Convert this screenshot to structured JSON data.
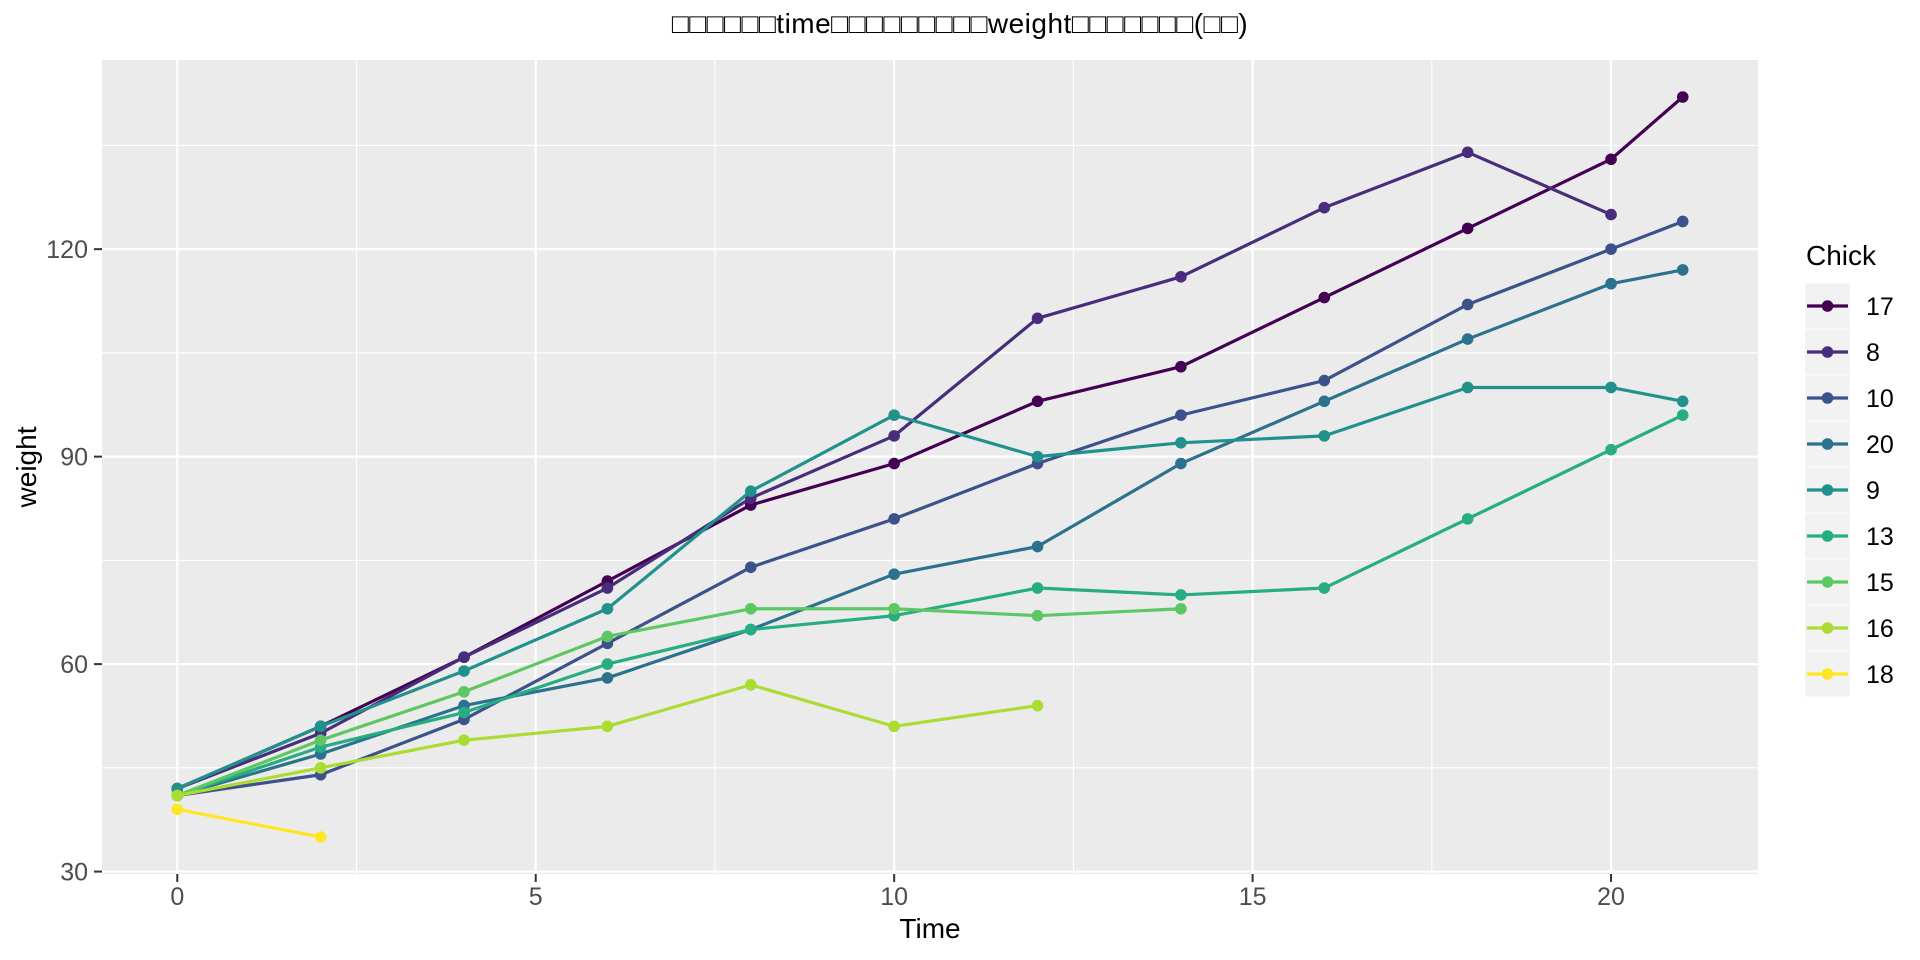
{
  "figure": {
    "background": "#FFFFFF"
  },
  "chart_data": {
    "type": "line",
    "title": "□□□□□□time□□□□□□□□□weight□□□□□□□(□□)",
    "xlabel": "Time",
    "ylabel": "weight",
    "legend_title": "Chick",
    "legend_position": "right",
    "x_ticks": [
      0,
      5,
      10,
      15,
      20
    ],
    "y_ticks": [
      30,
      60,
      90,
      120
    ],
    "x_minor_gridlines": [
      2.5,
      7.5,
      12.5,
      17.5
    ],
    "y_minor_gridlines": [
      45,
      75,
      105,
      135
    ],
    "xlim": [
      -1.05,
      22.05
    ],
    "ylim": [
      29.65,
      147.35
    ],
    "grid": true,
    "panel_background": "#EBEBEB",
    "gridline_color": "#FFFFFF",
    "axis_text_color": "#4D4D4D",
    "axis_title_color": "#000000",
    "tick_color": "#333333",
    "legend_key_background": "#F2F2F2",
    "series": [
      {
        "name": "17",
        "color": "#440154",
        "x": [
          0,
          2,
          4,
          6,
          8,
          10,
          12,
          14,
          16,
          18,
          20,
          21
        ],
        "y": [
          42,
          51,
          61,
          72,
          83,
          89,
          98,
          103,
          113,
          123,
          133,
          142
        ]
      },
      {
        "name": "8",
        "color": "#472D7B",
        "x": [
          0,
          2,
          4,
          6,
          8,
          10,
          12,
          14,
          16,
          18,
          20
        ],
        "y": [
          42,
          50,
          61,
          71,
          84,
          93,
          110,
          116,
          126,
          134,
          125
        ]
      },
      {
        "name": "10",
        "color": "#3B528B",
        "x": [
          0,
          2,
          4,
          6,
          8,
          10,
          12,
          14,
          16,
          18,
          20,
          21
        ],
        "y": [
          41,
          44,
          52,
          63,
          74,
          81,
          89,
          96,
          101,
          112,
          120,
          124
        ]
      },
      {
        "name": "20",
        "color": "#2C728E",
        "x": [
          0,
          2,
          4,
          6,
          8,
          10,
          12,
          14,
          16,
          18,
          20,
          21
        ],
        "y": [
          41,
          47,
          54,
          58,
          65,
          73,
          77,
          89,
          98,
          107,
          115,
          117
        ]
      },
      {
        "name": "9",
        "color": "#21918C",
        "x": [
          0,
          2,
          4,
          6,
          8,
          10,
          12,
          14,
          16,
          18,
          20,
          21
        ],
        "y": [
          42,
          51,
          59,
          68,
          85,
          96,
          90,
          92,
          93,
          100,
          100,
          98
        ]
      },
      {
        "name": "13",
        "color": "#27AD81",
        "x": [
          0,
          2,
          4,
          6,
          8,
          10,
          12,
          14,
          16,
          18,
          20,
          21
        ],
        "y": [
          41,
          48,
          53,
          60,
          65,
          67,
          71,
          70,
          71,
          81,
          91,
          96
        ]
      },
      {
        "name": "15",
        "color": "#5DC863",
        "x": [
          0,
          2,
          4,
          6,
          8,
          10,
          12,
          14
        ],
        "y": [
          41,
          49,
          56,
          64,
          68,
          68,
          67,
          68
        ]
      },
      {
        "name": "16",
        "color": "#AADC32",
        "x": [
          0,
          2,
          4,
          6,
          8,
          10,
          12
        ],
        "y": [
          41,
          45,
          49,
          51,
          57,
          51,
          54
        ]
      },
      {
        "name": "18",
        "color": "#FDE725",
        "x": [
          0,
          2
        ],
        "y": [
          39,
          35
        ]
      }
    ]
  }
}
